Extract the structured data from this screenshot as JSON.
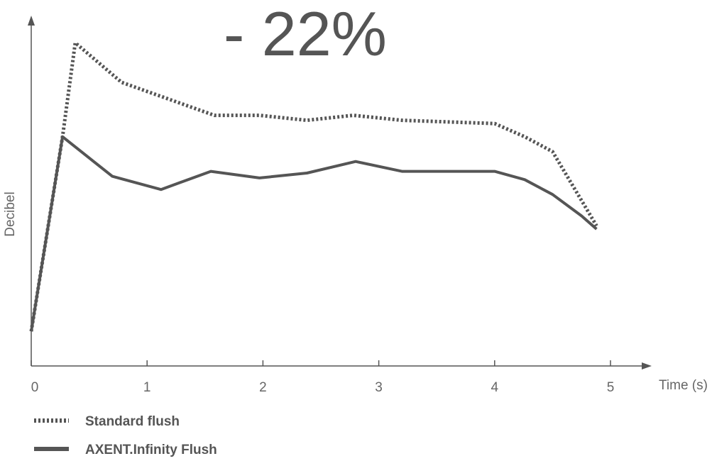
{
  "headline": "- 22%",
  "chart_data": {
    "type": "line",
    "xlabel": "Time (s)",
    "ylabel": "Decibel",
    "xlim": [
      0,
      5.3
    ],
    "ylim": [
      0,
      10
    ],
    "x_ticks": [
      "0",
      "1",
      "2",
      "3",
      "4",
      "5"
    ],
    "y_ticks_shown": false,
    "grid": false,
    "legend_position": "bottom-left",
    "series": [
      {
        "name": "Standard flush",
        "style": "dotted",
        "color": "#555555",
        "points": [
          [
            0.0,
            1.05
          ],
          [
            0.27,
            6.95
          ],
          [
            0.38,
            9.8
          ],
          [
            0.78,
            8.6
          ],
          [
            1.1,
            8.2
          ],
          [
            1.58,
            7.6
          ],
          [
            1.97,
            7.6
          ],
          [
            2.38,
            7.45
          ],
          [
            2.78,
            7.6
          ],
          [
            3.2,
            7.45
          ],
          [
            4.0,
            7.35
          ],
          [
            4.26,
            6.95
          ],
          [
            4.5,
            6.5
          ],
          [
            4.88,
            4.25
          ]
        ]
      },
      {
        "name": "AXENT.Infinity Flush",
        "style": "solid",
        "color": "#555555",
        "points": [
          [
            0.0,
            1.05
          ],
          [
            0.27,
            6.95
          ],
          [
            0.7,
            5.75
          ],
          [
            1.12,
            5.35
          ],
          [
            1.55,
            5.9
          ],
          [
            1.97,
            5.7
          ],
          [
            2.38,
            5.85
          ],
          [
            2.8,
            6.2
          ],
          [
            3.2,
            5.9
          ],
          [
            4.0,
            5.9
          ],
          [
            4.26,
            5.65
          ],
          [
            4.5,
            5.2
          ],
          [
            4.75,
            4.55
          ],
          [
            4.88,
            4.15
          ]
        ]
      }
    ]
  }
}
